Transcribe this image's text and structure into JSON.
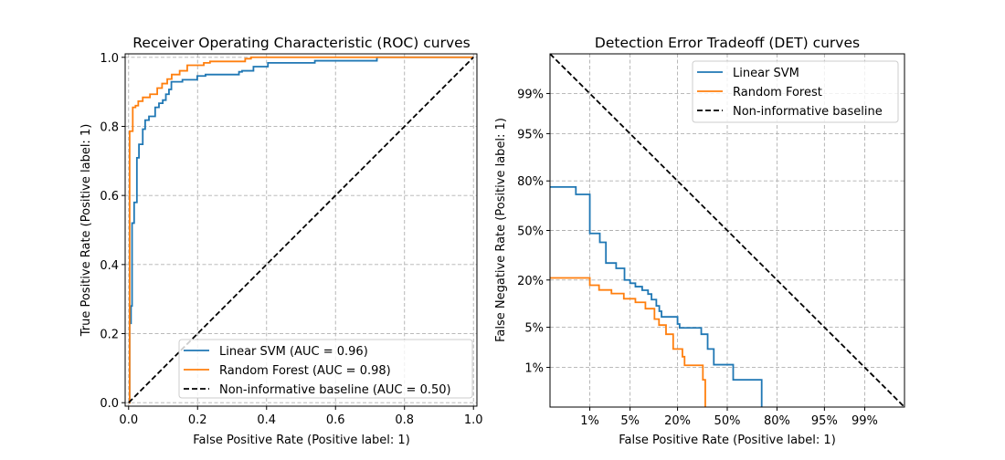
{
  "chart_data": [
    {
      "type": "line",
      "title": "Receiver Operating Characteristic (ROC) curves",
      "xlabel": "False Positive Rate (Positive label: 1)",
      "ylabel": "True Positive Rate (Positive label: 1)",
      "xlim": [
        -0.01,
        1.01
      ],
      "ylim": [
        -0.01,
        1.01
      ],
      "xticks": [
        0.0,
        0.2,
        0.4,
        0.6,
        0.8,
        1.0
      ],
      "xtick_labels": [
        "0.0",
        "0.2",
        "0.4",
        "0.6",
        "0.8",
        "1.0"
      ],
      "yticks": [
        0.0,
        0.2,
        0.4,
        0.6,
        0.8,
        1.0
      ],
      "ytick_labels": [
        "0.0",
        "0.2",
        "0.4",
        "0.6",
        "0.8",
        "1.0"
      ],
      "grid": true,
      "legend_position": "lower-right",
      "series": [
        {
          "name": "Linear SVM (AUC = 0.96)",
          "color": "#1f77b4",
          "style": "solid",
          "points": [
            [
              0,
              0
            ],
            [
              0.003,
              0.23
            ],
            [
              0.007,
              0.28
            ],
            [
              0.01,
              0.52
            ],
            [
              0.016,
              0.58
            ],
            [
              0.024,
              0.709
            ],
            [
              0.03,
              0.748
            ],
            [
              0.041,
              0.792
            ],
            [
              0.048,
              0.818
            ],
            [
              0.059,
              0.829
            ],
            [
              0.077,
              0.855
            ],
            [
              0.088,
              0.867
            ],
            [
              0.099,
              0.876
            ],
            [
              0.108,
              0.893
            ],
            [
              0.117,
              0.907
            ],
            [
              0.124,
              0.929
            ],
            [
              0.156,
              0.935
            ],
            [
              0.199,
              0.946
            ],
            [
              0.223,
              0.95
            ],
            [
              0.32,
              0.958
            ],
            [
              0.329,
              0.961
            ],
            [
              0.362,
              0.973
            ],
            [
              0.404,
              0.984
            ],
            [
              0.54,
              0.99
            ],
            [
              0.72,
              1.0
            ],
            [
              1.0,
              1.0
            ]
          ]
        },
        {
          "name": "Random Forest (AUC = 0.98)",
          "color": "#ff7f0e",
          "style": "solid",
          "points": [
            [
              0,
              0
            ],
            [
              0.003,
              0.786
            ],
            [
              0.012,
              0.855
            ],
            [
              0.02,
              0.86
            ],
            [
              0.028,
              0.873
            ],
            [
              0.041,
              0.884
            ],
            [
              0.062,
              0.893
            ],
            [
              0.083,
              0.911
            ],
            [
              0.097,
              0.924
            ],
            [
              0.112,
              0.937
            ],
            [
              0.125,
              0.95
            ],
            [
              0.148,
              0.961
            ],
            [
              0.17,
              0.977
            ],
            [
              0.218,
              0.984
            ],
            [
              0.236,
              0.988
            ],
            [
              0.338,
              0.996
            ],
            [
              0.355,
              1.0
            ],
            [
              1.0,
              1.0
            ]
          ]
        },
        {
          "name": "Non-informative baseline (AUC = 0.50)",
          "color": "#000000",
          "style": "dashed",
          "points": [
            [
              0,
              0
            ],
            [
              1,
              1
            ]
          ]
        }
      ]
    },
    {
      "type": "line",
      "title": "Detection Error Tradeoff (DET) curves",
      "xlabel": "False Positive Rate (Positive label: 1)",
      "ylabel": "False Negative Rate (Positive label: 1)",
      "scale": "probit",
      "xticks": [
        0.01,
        0.05,
        0.2,
        0.5,
        0.8,
        0.95,
        0.99
      ],
      "xtick_labels": [
        "1%",
        "5%",
        "20%",
        "50%",
        "80%",
        "95%",
        "99%"
      ],
      "yticks": [
        0.01,
        0.05,
        0.2,
        0.5,
        0.8,
        0.95,
        0.99
      ],
      "ytick_labels": [
        "1%",
        "5%",
        "20%",
        "50%",
        "80%",
        "95%",
        "99%"
      ],
      "grid": true,
      "legend_position": "top-right",
      "series": [
        {
          "name": "Linear SVM",
          "color": "#1f77b4",
          "style": "solid",
          "points": [
            [
              0.0013,
              0.77
            ],
            [
              0.0052,
              0.73
            ],
            [
              0.01,
              0.48
            ],
            [
              0.0155,
              0.42
            ],
            [
              0.02,
              0.29
            ],
            [
              0.03,
              0.26
            ],
            [
              0.041,
              0.2
            ],
            [
              0.05,
              0.185
            ],
            [
              0.06,
              0.17
            ],
            [
              0.075,
              0.155
            ],
            [
              0.09,
              0.14
            ],
            [
              0.1,
              0.12
            ],
            [
              0.115,
              0.1
            ],
            [
              0.125,
              0.085
            ],
            [
              0.133,
              0.071
            ],
            [
              0.2,
              0.056
            ],
            [
              0.21,
              0.049
            ],
            [
              0.33,
              0.039
            ],
            [
              0.37,
              0.022
            ],
            [
              0.41,
              0.0113
            ],
            [
              0.54,
              0.0056
            ],
            [
              0.72,
              0.0001
            ]
          ]
        },
        {
          "name": "Random Forest",
          "color": "#ff7f0e",
          "style": "solid",
          "points": [
            [
              0.0013,
              0.21
            ],
            [
              0.01,
              0.176
            ],
            [
              0.015,
              0.156
            ],
            [
              0.025,
              0.142
            ],
            [
              0.04,
              0.123
            ],
            [
              0.06,
              0.111
            ],
            [
              0.083,
              0.092
            ],
            [
              0.109,
              0.066
            ],
            [
              0.124,
              0.054
            ],
            [
              0.15,
              0.039
            ],
            [
              0.18,
              0.022
            ],
            [
              0.224,
              0.016
            ],
            [
              0.235,
              0.011
            ],
            [
              0.34,
              0.0056
            ],
            [
              0.355,
              0.0001
            ]
          ]
        },
        {
          "name": "Non-informative baseline",
          "color": "#000000",
          "style": "dashed",
          "points": [
            [
              0.0013,
              0.9987
            ],
            [
              0.9987,
              0.0013
            ]
          ]
        }
      ]
    }
  ]
}
